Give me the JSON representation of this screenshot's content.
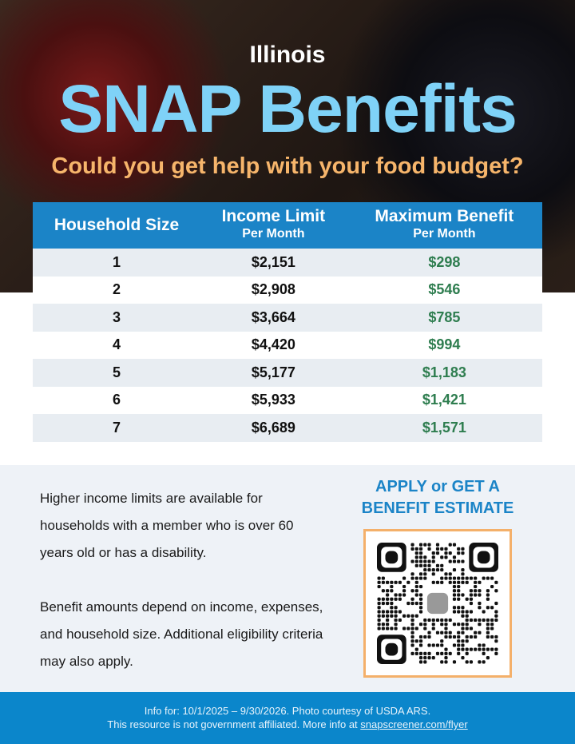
{
  "header": {
    "state": "Illinois",
    "title": "SNAP Benefits",
    "subtitle": "Could you get help with your food budget?"
  },
  "table": {
    "headers": {
      "size": "Household Size",
      "income": "Income Limit",
      "income_sub": "Per Month",
      "benefit": "Maximum Benefit",
      "benefit_sub": "Per Month"
    },
    "rows": [
      {
        "size": "1",
        "income": "$2,151",
        "benefit": "$298"
      },
      {
        "size": "2",
        "income": "$2,908",
        "benefit": "$546"
      },
      {
        "size": "3",
        "income": "$3,664",
        "benefit": "$785"
      },
      {
        "size": "4",
        "income": "$4,420",
        "benefit": "$994"
      },
      {
        "size": "5",
        "income": "$5,177",
        "benefit": "$1,183"
      },
      {
        "size": "6",
        "income": "$5,933",
        "benefit": "$1,421"
      },
      {
        "size": "7",
        "income": "$6,689",
        "benefit": "$1,571"
      }
    ]
  },
  "info": {
    "para1": "Higher income limits are available for households with a member who is over 60 years old or has a disability.",
    "para2": "Benefit amounts depend on income, expenses, and household size. Additional eligibility criteria may also apply.",
    "apply": "APPLY or GET A BENEFIT ESTIMATE",
    "qr_icon": "gift-icon"
  },
  "footer": {
    "line1": "Info for: 10/1/2025 – 9/30/2026. Photo courtesy of USDA ARS.",
    "line2": "This resource is not government affiliated. More info at ",
    "link": "snapscreener.com/flyer"
  },
  "colors": {
    "title": "#7fd2f7",
    "subtitle": "#f6b56b",
    "header_blue": "#1b84c7",
    "benefit_green": "#2e7d4f",
    "footer": "#0b86cb"
  }
}
